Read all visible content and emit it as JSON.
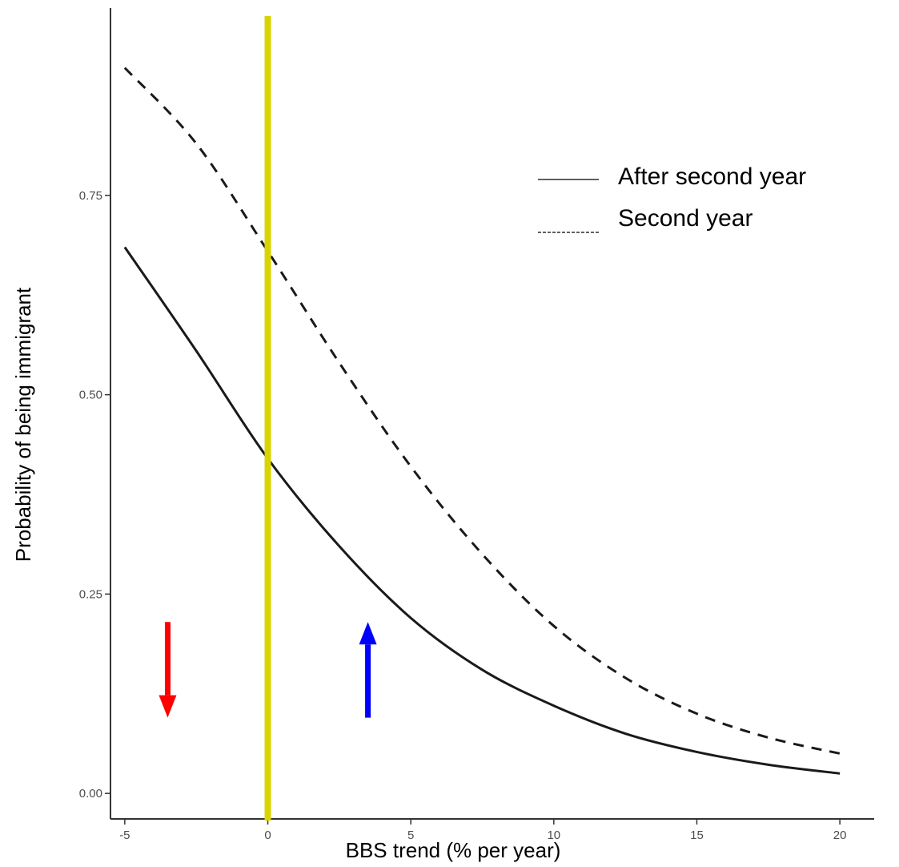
{
  "chart_data": {
    "type": "line",
    "xlabel": "BBS trend (% per year)",
    "ylabel": "Probability of being immigrant",
    "xlim": [
      -5.5,
      21.2
    ],
    "ylim": [
      -0.032,
      0.985
    ],
    "xticks": [
      -5,
      0,
      5,
      10,
      15,
      20
    ],
    "yticks": [
      0.0,
      0.25,
      0.5,
      0.75
    ],
    "xtick_labels": [
      "-5",
      "0",
      "5",
      "10",
      "15",
      "20"
    ],
    "ytick_labels": [
      "0.00",
      "0.25",
      "0.50",
      "0.75"
    ],
    "grid": false,
    "legend_position": "top-right",
    "series": [
      {
        "name": "After second year",
        "style": "solid",
        "color": "#1a1a1a",
        "x": [
          -5,
          -2.5,
          0,
          2.5,
          5,
          7.5,
          10,
          12.5,
          15,
          17.5,
          20
        ],
        "y": [
          0.685,
          0.555,
          0.42,
          0.31,
          0.22,
          0.155,
          0.11,
          0.075,
          0.052,
          0.036,
          0.025
        ]
      },
      {
        "name": "Second year",
        "style": "dashed",
        "color": "#1a1a1a",
        "x": [
          -5,
          -2.5,
          0,
          2.5,
          5,
          7.5,
          10,
          12.5,
          15,
          17.5,
          20
        ],
        "y": [
          0.91,
          0.815,
          0.68,
          0.54,
          0.41,
          0.3,
          0.21,
          0.145,
          0.1,
          0.07,
          0.05
        ]
      }
    ],
    "annotations": [
      {
        "type": "vertical-line",
        "x": 0,
        "color": "#d9d400"
      },
      {
        "type": "arrow",
        "direction": "down",
        "x": -3.5,
        "y_from": 0.215,
        "y_to": 0.095,
        "color": "#ff0000"
      },
      {
        "type": "arrow",
        "direction": "up",
        "x": 3.5,
        "y_from": 0.095,
        "y_to": 0.215,
        "color": "#0000ff"
      }
    ]
  }
}
